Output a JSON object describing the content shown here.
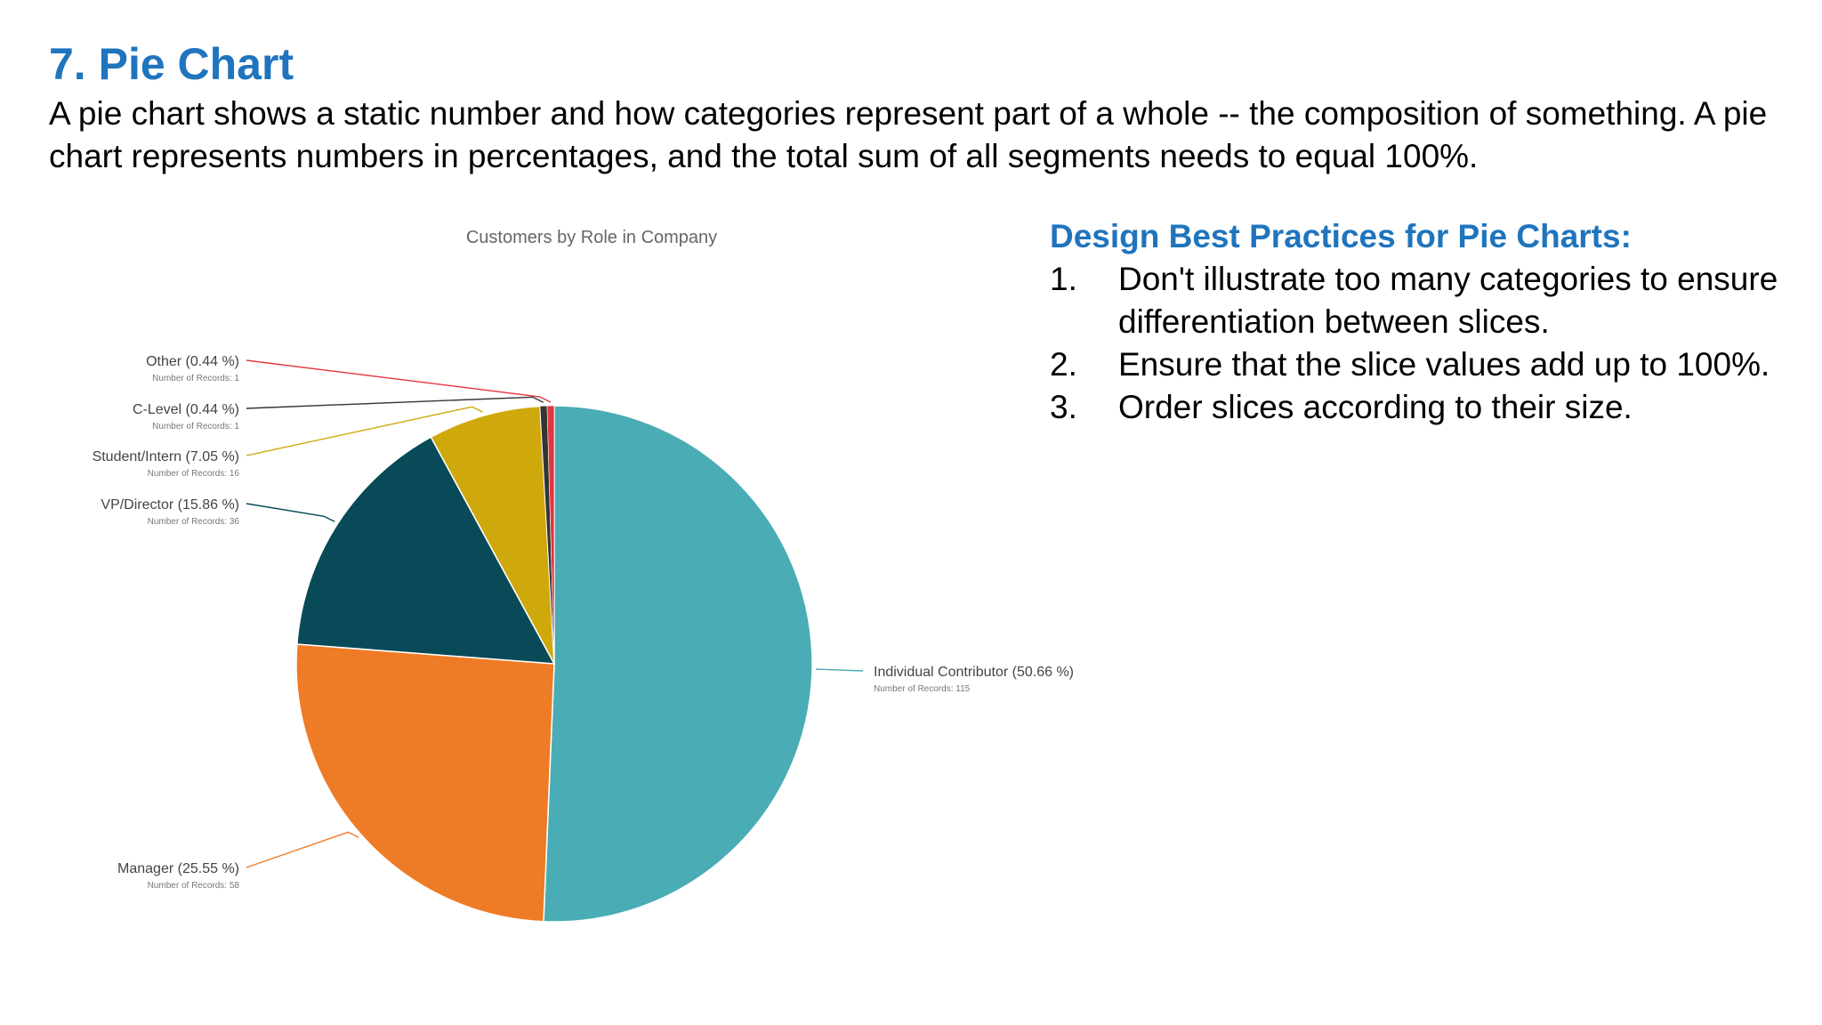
{
  "slide": {
    "title": "7. Pie Chart",
    "description": "A pie chart shows a static number and how categories represent part of a whole -- the composition of something. A pie chart represents numbers in percentages, and the total sum of all segments needs to equal 100%."
  },
  "best_practices": {
    "heading": "Design Best Practices for Pie Charts:",
    "items": [
      {
        "number": "1.",
        "text": "Don't illustrate too many categories to ensure differentiation between slices."
      },
      {
        "number": "2.",
        "text": "Ensure that the slice values add up to 100%."
      },
      {
        "number": "3.",
        "text": "Order slices according to their size."
      }
    ]
  },
  "chart_data": {
    "type": "pie",
    "title": "Customers by Role in Company",
    "records_label": "Number of Records:",
    "slices": [
      {
        "name": "Individual Contributor",
        "percent": 50.66,
        "label": "Individual Contributor (50.66 %)",
        "records": 115,
        "color": "#4aacb4",
        "label_side": "right"
      },
      {
        "name": "Manager",
        "percent": 25.55,
        "label": "Manager (25.55 %)",
        "records": 58,
        "color": "#ee7b25",
        "label_side": "left"
      },
      {
        "name": "VP/Director",
        "percent": 15.86,
        "label": "VP/Director (15.86 %)",
        "records": 36,
        "color": "#084a57",
        "label_side": "left"
      },
      {
        "name": "Student/Intern",
        "percent": 7.05,
        "label": "Student/Intern (7.05 %)",
        "records": 16,
        "color": "#cfa90c",
        "label_side": "left"
      },
      {
        "name": "C-Level",
        "percent": 0.44,
        "label": "C-Level (0.44 %)",
        "records": 1,
        "color": "#343434",
        "label_side": "left"
      },
      {
        "name": "Other",
        "percent": 0.44,
        "label": "Other (0.44 %)",
        "records": 1,
        "color": "#e2373f",
        "label_side": "left"
      }
    ],
    "start_angle_deg": 0,
    "direction": "clockwise",
    "legend": "none",
    "label_style": "callouts"
  }
}
